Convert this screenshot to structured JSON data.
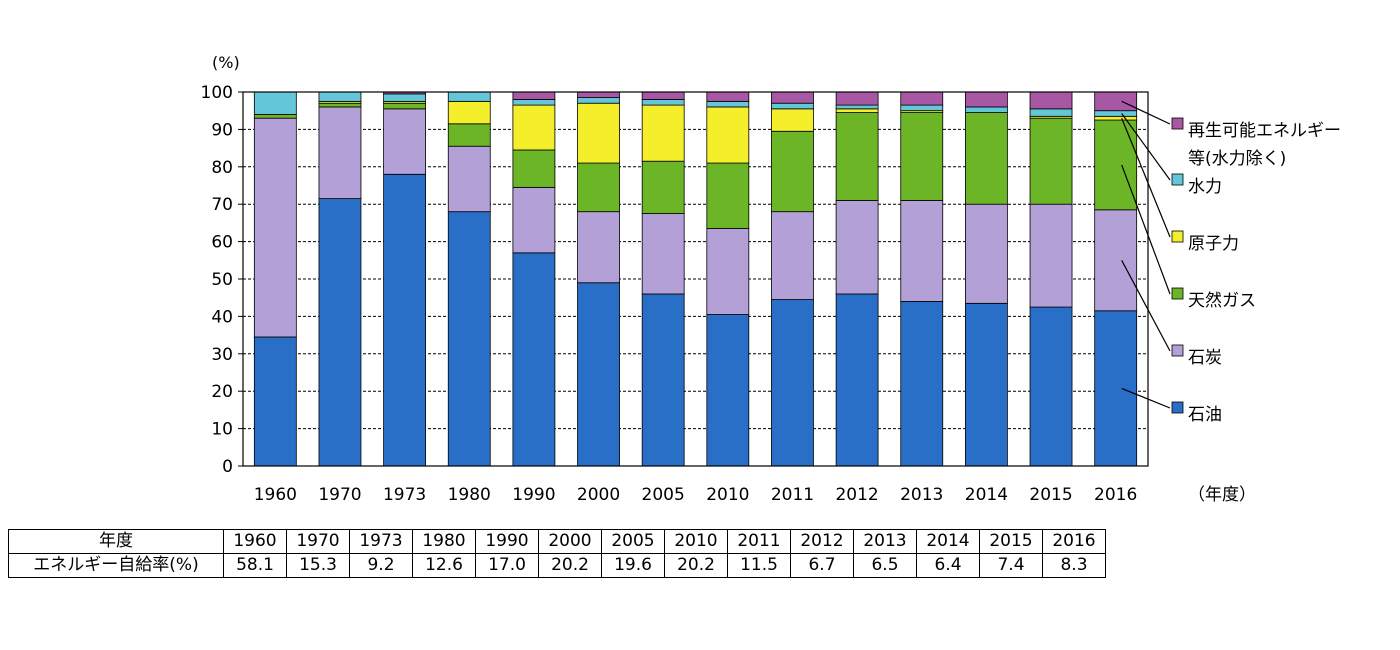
{
  "chart_data": {
    "type": "bar",
    "stacked": true,
    "categories": [
      "1960",
      "1970",
      "1973",
      "1980",
      "1990",
      "2000",
      "2005",
      "2010",
      "2011",
      "2012",
      "2013",
      "2014",
      "2015",
      "2016"
    ],
    "series": [
      {
        "name": "石油",
        "color": "#2a6fc7",
        "values": [
          34.5,
          71.5,
          78.0,
          68.0,
          57.0,
          49.0,
          46.0,
          40.5,
          44.5,
          46.0,
          44.0,
          43.5,
          42.5,
          41.5
        ]
      },
      {
        "name": "石炭",
        "color": "#b3a0d6",
        "values": [
          58.5,
          24.5,
          17.5,
          17.5,
          17.5,
          19.0,
          21.5,
          23.0,
          23.5,
          25.0,
          27.0,
          26.5,
          27.5,
          27.0
        ]
      },
      {
        "name": "天然ガス",
        "color": "#6bb526",
        "values": [
          1.0,
          1.0,
          1.5,
          6.0,
          10.0,
          13.0,
          14.0,
          17.5,
          21.5,
          23.5,
          23.5,
          24.5,
          23.0,
          24.0
        ]
      },
      {
        "name": "原子力",
        "color": "#f5ef2b",
        "values": [
          0.0,
          0.5,
          0.5,
          6.0,
          12.0,
          16.0,
          15.0,
          15.0,
          6.0,
          1.0,
          0.5,
          0.0,
          0.5,
          1.0
        ]
      },
      {
        "name": "水力",
        "color": "#63c6d9",
        "values": [
          6.0,
          2.5,
          2.0,
          2.5,
          1.5,
          1.5,
          1.5,
          1.5,
          1.5,
          1.0,
          1.5,
          1.5,
          2.0,
          1.5
        ]
      },
      {
        "name": "再生可能エネルギー等(水力除く)",
        "color": "#a857a4",
        "values": [
          0.0,
          0.0,
          0.5,
          0.0,
          2.0,
          1.5,
          2.0,
          2.5,
          3.0,
          3.5,
          3.5,
          4.0,
          4.5,
          5.0
        ]
      }
    ],
    "legend_lines": [
      "再生可能エネルギー",
      "等(水力除く)",
      "水力",
      "原子力",
      "天然ガス",
      "石炭",
      "石油"
    ],
    "legend_placement": "right",
    "ylim": [
      0,
      100
    ],
    "yticks": [
      "0",
      "10",
      "20",
      "30",
      "40",
      "50",
      "60",
      "70",
      "80",
      "90",
      "100"
    ],
    "ylabel": "(%)",
    "xlabel": "（年度）",
    "grid": true
  },
  "table": {
    "row1_header": "年度",
    "row2_header": "エネルギー自給率(%)",
    "years": [
      "1960",
      "1970",
      "1973",
      "1980",
      "1990",
      "2000",
      "2005",
      "2010",
      "2011",
      "2012",
      "2013",
      "2014",
      "2015",
      "2016"
    ],
    "rates": [
      "58.1",
      "15.3",
      "9.2",
      "12.6",
      "17.0",
      "20.2",
      "19.6",
      "20.2",
      "11.5",
      "6.7",
      "6.5",
      "6.4",
      "7.4",
      "8.3"
    ]
  }
}
